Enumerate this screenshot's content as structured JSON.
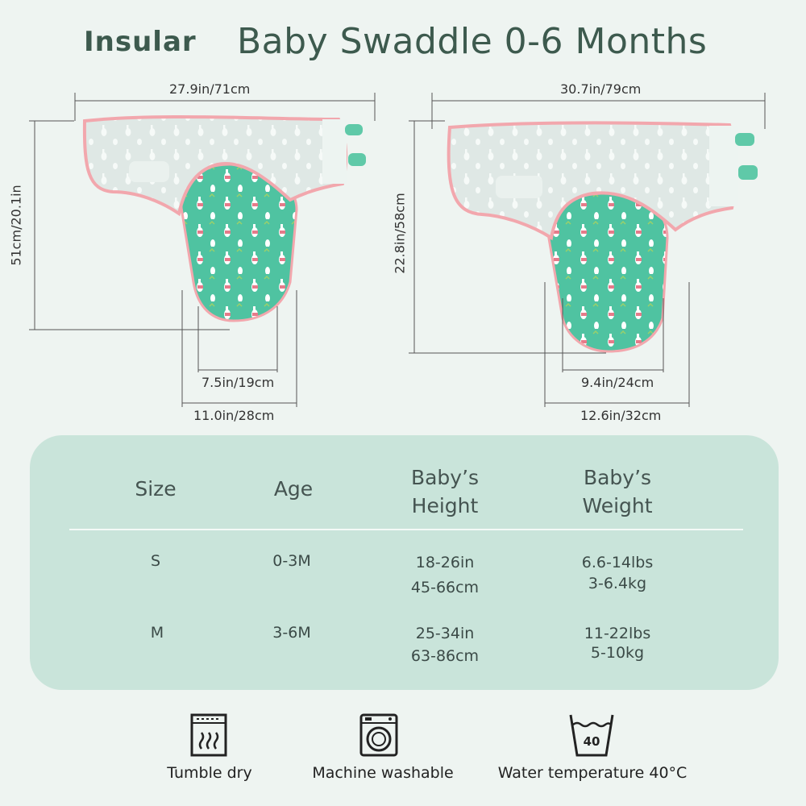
{
  "header": {
    "brand": "Insular",
    "title": "Baby Swaddle 0-6 Months"
  },
  "small_swaddle": {
    "width": "27.9in/71cm",
    "length": "51cm/20.1in",
    "bottom_inner": "7.5in/19cm",
    "bottom_outer": "11.0in/28cm"
  },
  "large_swaddle": {
    "width": "30.7in/79cm",
    "length": "22.8in/58cm",
    "bottom_inner": "9.4in/24cm",
    "bottom_outer": "12.6in/32cm"
  },
  "size_table": {
    "headers": {
      "size": "Size",
      "age": "Age",
      "height_1": "Baby’s",
      "height_2": "Height",
      "weight_1": "Baby’s",
      "weight_2": "Weight"
    },
    "rows": [
      {
        "size": "S",
        "age": "0-3M",
        "height_in": "18-26in",
        "height_cm": "45-66cm",
        "weight_lbs": "6.6-14lbs",
        "weight_kg": "3-6.4kg"
      },
      {
        "size": "M",
        "age": "3-6M",
        "height_in": "25-34in",
        "height_cm": "63-86cm",
        "weight_lbs": "11-22lbs",
        "weight_kg": "5-10kg"
      }
    ]
  },
  "care": [
    {
      "icon": "tumble-dry-icon",
      "label": "Tumble dry"
    },
    {
      "icon": "washing-machine-icon",
      "label": "Machine washable"
    },
    {
      "icon": "wash-tub-40-icon",
      "label": "Water temperature 40°C",
      "temp": "40"
    }
  ],
  "colors": {
    "background": "#eef4f1",
    "panel": "#c9e4da",
    "title": "#3d5a4e",
    "mint": "#4fc3a1",
    "pink": "#f2a7ad"
  }
}
